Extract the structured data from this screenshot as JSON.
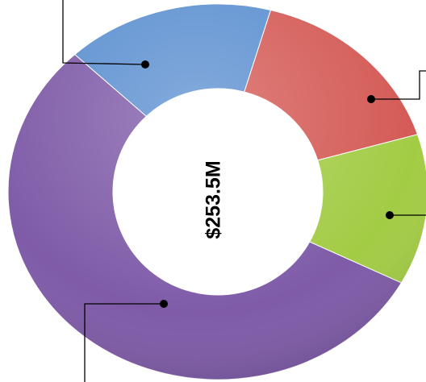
{
  "chart_data": {
    "type": "donut",
    "center_label": "$253.5M",
    "values": [
      16,
      16,
      13,
      55
    ],
    "colors": [
      "#5b8fd0",
      "#d45a55",
      "#a3cc45",
      "#7f5ba8"
    ]
  }
}
